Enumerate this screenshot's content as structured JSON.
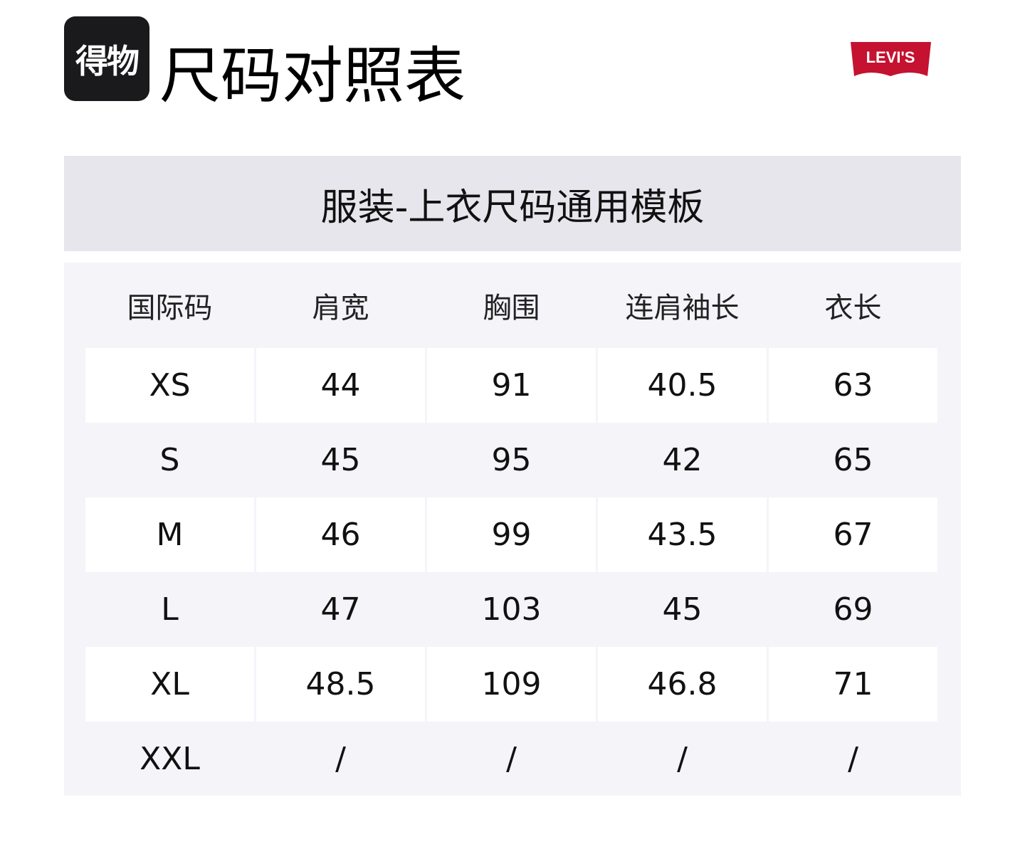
{
  "header": {
    "logo_text": "得物",
    "title": "尺码对照表",
    "brand_logo": "Levi's",
    "brand_color": "#c41230"
  },
  "banner": {
    "title": "服装-上衣尺码通用模板"
  },
  "table": {
    "columns": [
      "国际码",
      "肩宽",
      "胸围",
      "连肩袖长",
      "衣长"
    ],
    "rows": [
      [
        "XS",
        "44",
        "91",
        "40.5",
        "63"
      ],
      [
        "S",
        "45",
        "95",
        "42",
        "65"
      ],
      [
        "M",
        "46",
        "99",
        "43.5",
        "67"
      ],
      [
        "L",
        "47",
        "103",
        "45",
        "69"
      ],
      [
        "XL",
        "48.5",
        "109",
        "46.8",
        "71"
      ],
      [
        "XXL",
        "/",
        "/",
        "/",
        "/"
      ]
    ]
  }
}
